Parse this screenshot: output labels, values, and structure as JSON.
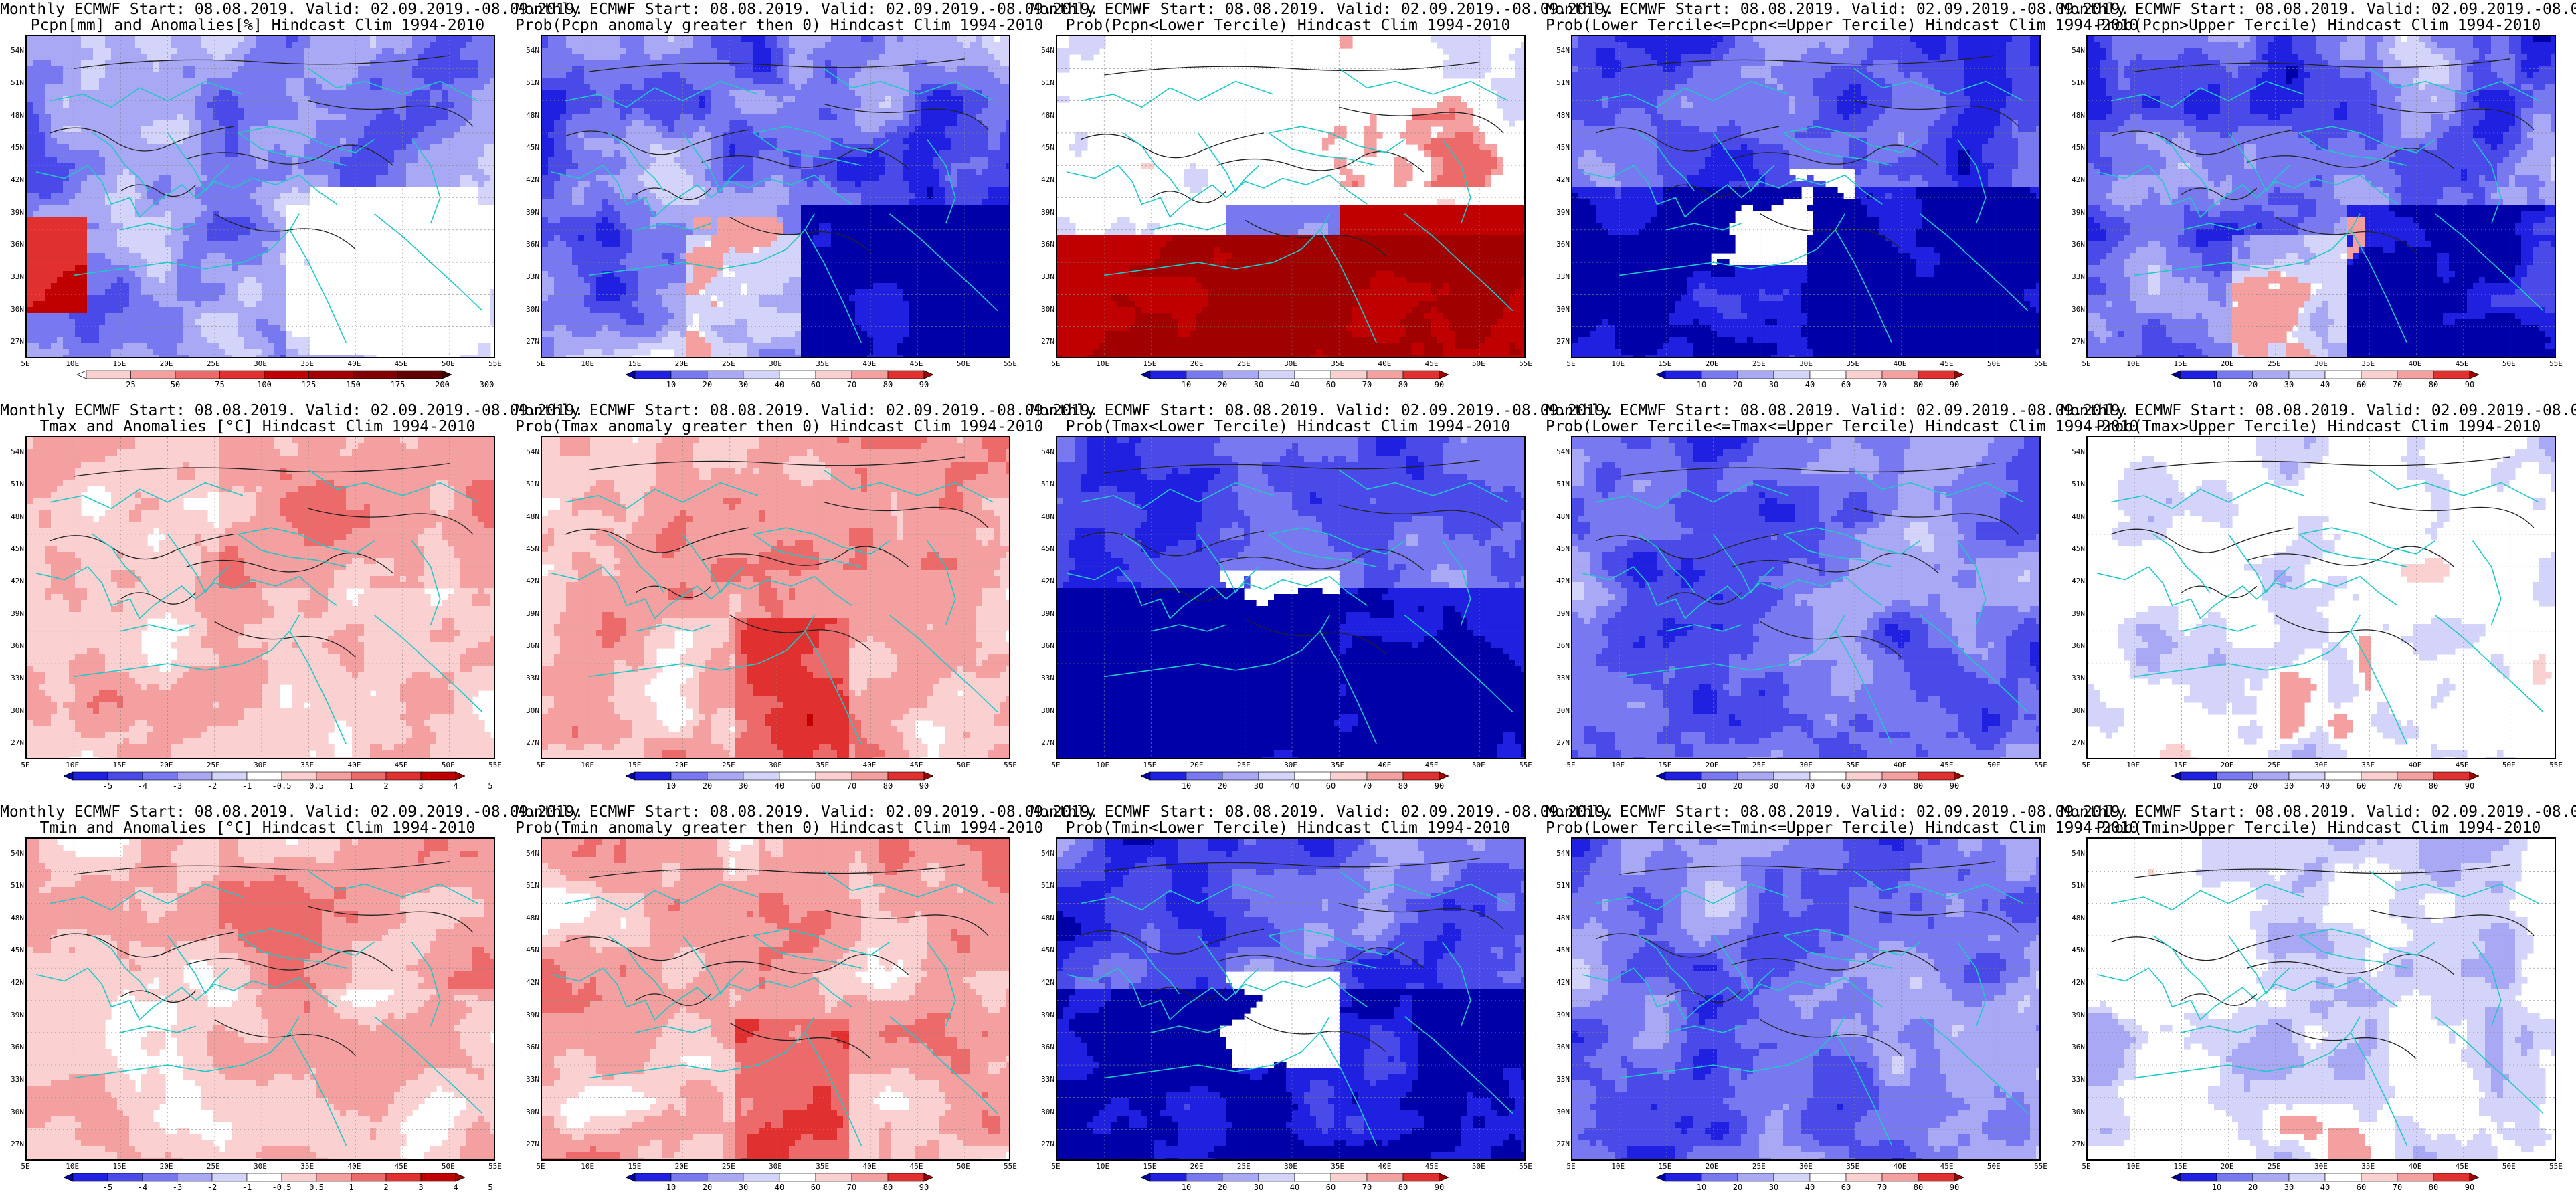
{
  "header_line": "Monthly ECMWF Start: 08.08.2019. Valid: 02.09.2019.-08.09.2019.",
  "lat_labels": [
    "54N",
    "51N",
    "48N",
    "45N",
    "42N",
    "39N",
    "36N",
    "33N",
    "30N",
    "27N"
  ],
  "lon_labels": [
    "5E",
    "10E",
    "15E",
    "20E",
    "25E",
    "30E",
    "35E",
    "40E",
    "45E",
    "50E",
    "55E"
  ],
  "colors": {
    "coast": "#20c8c8",
    "contour": "#222222",
    "deep_blue": "#0000a8",
    "deep_red": "#a00000"
  },
  "panels": [
    {
      "title": "Pcpn[mm] and Anomalies[%] Hindcast Clim 1994-2010",
      "scale": "precip",
      "colorbar": {
        "kind": "precip",
        "ticks": [
          "25",
          "50",
          "75",
          "100",
          "125",
          "150",
          "175",
          "200",
          "300"
        ]
      }
    },
    {
      "title": "Prob(Pcpn anomaly greater then 0) Hindcast Clim 1994-2010",
      "scale": "blue_wet",
      "colorbar": {
        "kind": "prob",
        "ticks": [
          "10",
          "20",
          "30",
          "40",
          "60",
          "70",
          "80",
          "90"
        ]
      }
    },
    {
      "title": "Prob(Pcpn<Lower Tercile) Hindcast Clim 1994-2010",
      "scale": "mixed_red",
      "colorbar": {
        "kind": "prob",
        "ticks": [
          "10",
          "20",
          "30",
          "40",
          "60",
          "70",
          "80",
          "90"
        ]
      }
    },
    {
      "title": "Prob(Lower Tercile<=Pcpn<=Upper Tercile) Hindcast Clim 1994-2010",
      "scale": "blue_dark",
      "colorbar": {
        "kind": "prob",
        "ticks": [
          "10",
          "20",
          "30",
          "40",
          "60",
          "70",
          "80",
          "90"
        ]
      }
    },
    {
      "title": "Prob(Pcpn>Upper Tercile) Hindcast Clim 1994-2010",
      "scale": "blue_wet",
      "colorbar": {
        "kind": "prob",
        "ticks": [
          "10",
          "20",
          "30",
          "40",
          "60",
          "70",
          "80",
          "90"
        ]
      }
    },
    {
      "title": "Tmax and Anomalies [°C] Hindcast Clim 1994-2010",
      "scale": "red_light",
      "colorbar": {
        "kind": "anom",
        "ticks": [
          "-5",
          "-4",
          "-3",
          "-2",
          "-1",
          "-0.5",
          "0.5",
          "1",
          "2",
          "3",
          "4",
          "5"
        ]
      }
    },
    {
      "title": "Prob(Tmax anomaly greater then 0) Hindcast Clim 1994-2010",
      "scale": "red_strong",
      "colorbar": {
        "kind": "prob",
        "ticks": [
          "10",
          "20",
          "30",
          "40",
          "60",
          "70",
          "80",
          "90"
        ]
      }
    },
    {
      "title": "Prob(Tmax<Lower Tercile) Hindcast Clim 1994-2010",
      "scale": "blue_dark",
      "colorbar": {
        "kind": "prob",
        "ticks": [
          "10",
          "20",
          "30",
          "40",
          "60",
          "70",
          "80",
          "90"
        ]
      }
    },
    {
      "title": "Prob(Lower Tercile<=Tmax<=Upper Tercile) Hindcast Clim 1994-2010",
      "scale": "blue_mid",
      "colorbar": {
        "kind": "prob",
        "ticks": [
          "10",
          "20",
          "30",
          "40",
          "60",
          "70",
          "80",
          "90"
        ]
      }
    },
    {
      "title": "Prob(Tmax>Upper Tercile) Hindcast Clim 1994-2010",
      "scale": "light_mixed",
      "colorbar": {
        "kind": "prob",
        "ticks": [
          "10",
          "20",
          "30",
          "40",
          "60",
          "70",
          "80",
          "90"
        ]
      }
    },
    {
      "title": "Tmin and Anomalies [°C] Hindcast Clim 1994-2010",
      "scale": "red_light",
      "colorbar": {
        "kind": "anom",
        "ticks": [
          "-5",
          "-4",
          "-3",
          "-2",
          "-1",
          "-0.5",
          "0.5",
          "1",
          "2",
          "3",
          "4",
          "5"
        ]
      }
    },
    {
      "title": "Prob(Tmin anomaly greater then 0) Hindcast Clim 1994-2010",
      "scale": "red_strong",
      "colorbar": {
        "kind": "prob",
        "ticks": [
          "10",
          "20",
          "30",
          "40",
          "60",
          "70",
          "80",
          "90"
        ]
      }
    },
    {
      "title": "Prob(Tmin<Lower Tercile) Hindcast Clim 1994-2010",
      "scale": "blue_dark",
      "colorbar": {
        "kind": "prob",
        "ticks": [
          "10",
          "20",
          "30",
          "40",
          "60",
          "70",
          "80",
          "90"
        ]
      }
    },
    {
      "title": "Prob(Lower Tercile<=Tmin<=Upper Tercile) Hindcast Clim 1994-2010",
      "scale": "blue_mid",
      "colorbar": {
        "kind": "prob",
        "ticks": [
          "10",
          "20",
          "30",
          "40",
          "60",
          "70",
          "80",
          "90"
        ]
      }
    },
    {
      "title": "Prob(Tmin>Upper Tercile) Hindcast Clim 1994-2010",
      "scale": "light_mixed",
      "colorbar": {
        "kind": "prob",
        "ticks": [
          "10",
          "20",
          "30",
          "40",
          "60",
          "70",
          "80",
          "90"
        ]
      }
    }
  ]
}
